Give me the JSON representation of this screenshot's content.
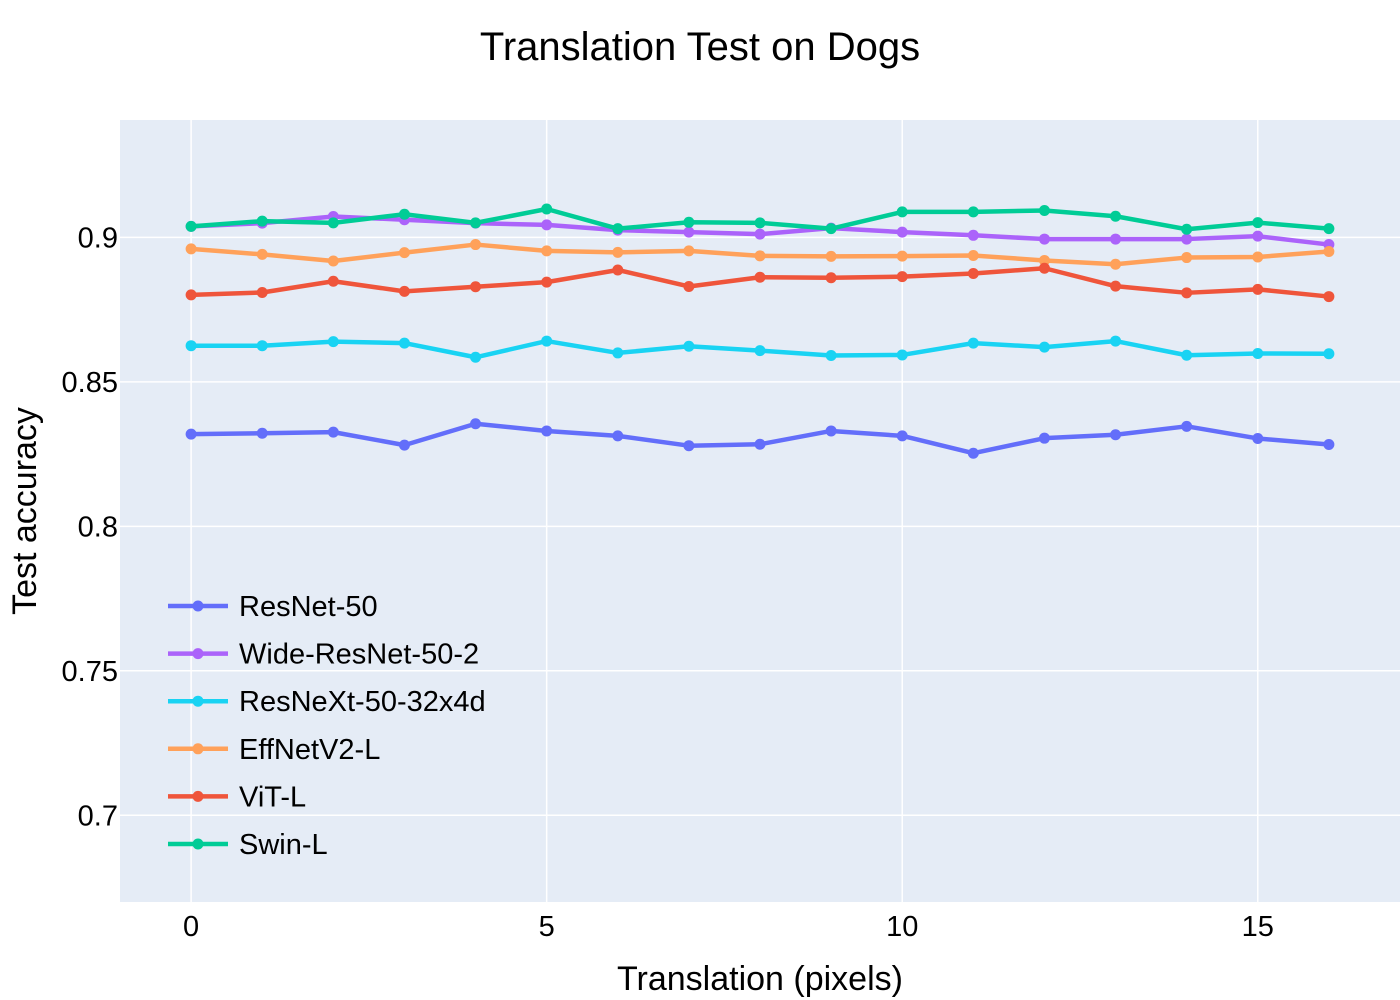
{
  "chart_data": {
    "type": "line",
    "title": "Translation Test on Dogs",
    "xlabel": "Translation (pixels)",
    "ylabel": "Test accuracy",
    "xlim": [
      -1,
      17
    ],
    "ylim": [
      0.67,
      0.9406
    ],
    "xticks": [
      0,
      5,
      10,
      15
    ],
    "xtick_labels": [
      "0",
      "5",
      "10",
      "15"
    ],
    "yticks": [
      0.7,
      0.75,
      0.8,
      0.85,
      0.9
    ],
    "ytick_labels": [
      "0.7",
      "0.75",
      "0.8",
      "0.85",
      "0.9"
    ],
    "grid": true,
    "legend_position": "bottom-left",
    "background": "#e5ecf6",
    "x": [
      0,
      1,
      2,
      3,
      4,
      5,
      6,
      7,
      8,
      9,
      10,
      11,
      12,
      13,
      14,
      15,
      16
    ],
    "series": [
      {
        "name": "ResNet-50",
        "color": "#636efa",
        "values": [
          0.8319,
          0.8322,
          0.8326,
          0.8281,
          0.8355,
          0.833,
          0.8313,
          0.8279,
          0.8284,
          0.833,
          0.8313,
          0.8253,
          0.8305,
          0.8317,
          0.8346,
          0.8304,
          0.8283
        ]
      },
      {
        "name": "Wide-ResNet-50-2",
        "color": "#ab63fa",
        "values": [
          0.9038,
          0.9049,
          0.9072,
          0.9061,
          0.9049,
          0.9043,
          0.9025,
          0.9018,
          0.9011,
          0.9032,
          0.9018,
          0.9007,
          0.8994,
          0.8994,
          0.8994,
          0.9004,
          0.8975
        ]
      },
      {
        "name": "ResNeXt-50-32x4d",
        "color": "#19d3f3",
        "values": [
          0.8625,
          0.8625,
          0.8639,
          0.8634,
          0.8585,
          0.8641,
          0.86,
          0.8623,
          0.8608,
          0.8591,
          0.8593,
          0.8634,
          0.862,
          0.8641,
          0.8592,
          0.8598,
          0.8597
        ]
      },
      {
        "name": "EffNetV2-L",
        "color": "#ffa15a",
        "values": [
          0.896,
          0.8941,
          0.8918,
          0.8947,
          0.8975,
          0.8953,
          0.8948,
          0.8953,
          0.8936,
          0.8934,
          0.8935,
          0.8937,
          0.892,
          0.8907,
          0.893,
          0.8932,
          0.8951
        ]
      },
      {
        "name": "ViT-L",
        "color": "#ef553b",
        "values": [
          0.8801,
          0.8809,
          0.8848,
          0.8813,
          0.8829,
          0.8845,
          0.8887,
          0.883,
          0.8862,
          0.886,
          0.8864,
          0.8875,
          0.8893,
          0.8831,
          0.8808,
          0.882,
          0.8795
        ]
      },
      {
        "name": "Swin-L",
        "color": "#00cc96",
        "values": [
          0.9038,
          0.9056,
          0.905,
          0.908,
          0.905,
          0.9098,
          0.903,
          0.9052,
          0.905,
          0.903,
          0.9088,
          0.9088,
          0.9093,
          0.9073,
          0.9028,
          0.9051,
          0.903
        ]
      }
    ]
  }
}
